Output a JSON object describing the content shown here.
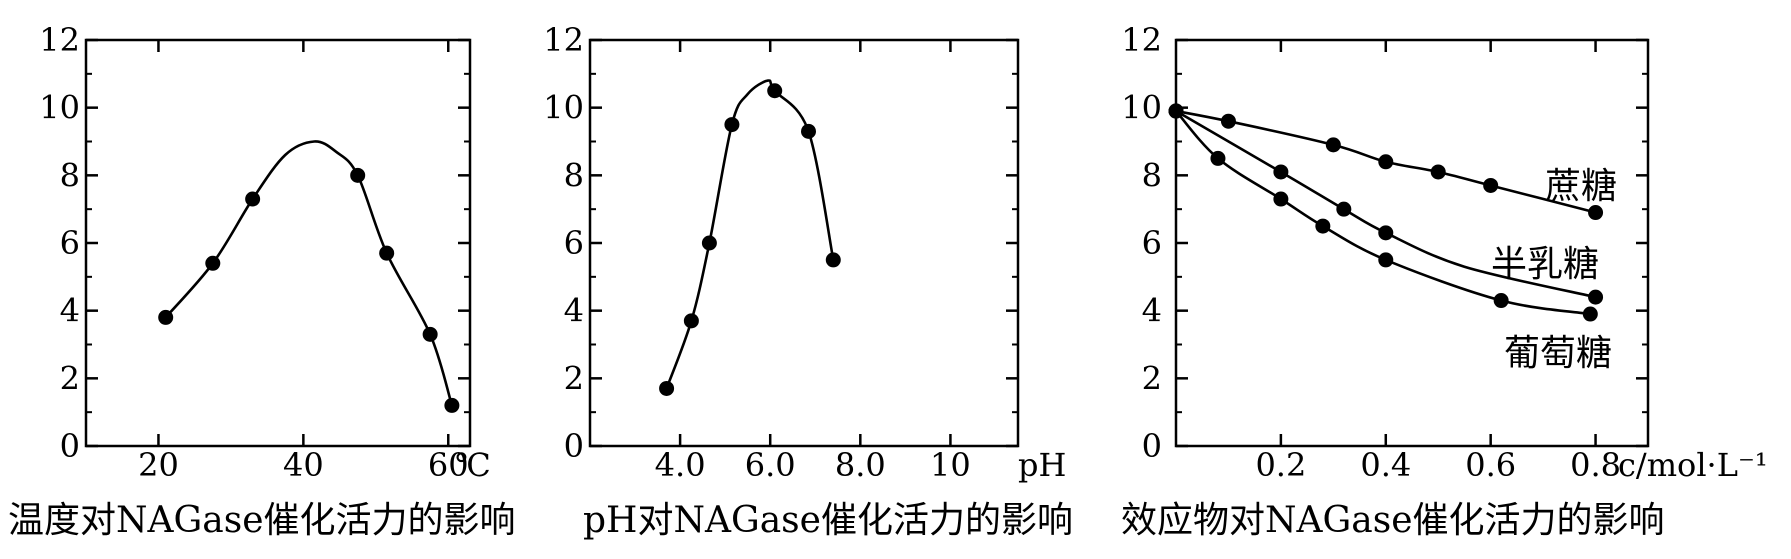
{
  "chart_data": [
    {
      "type": "line",
      "title": "温度对NAGase催化活力的影响",
      "xlabel": "℃",
      "ylabel": "",
      "xlim": [
        10,
        63
      ],
      "ylim": [
        0,
        12
      ],
      "x_ticks": [
        20,
        40,
        60
      ],
      "x_tick_labels": [
        "20",
        "40",
        "60"
      ],
      "y_ticks": [
        0,
        2,
        4,
        6,
        8,
        10,
        12
      ],
      "y_tick_labels": [
        "0",
        "2",
        "4",
        "6",
        "8",
        "10",
        "12"
      ],
      "grid": false,
      "series": [
        {
          "points": [
            [
              21,
              3.8
            ],
            [
              27.5,
              5.4
            ],
            [
              33,
              7.3
            ],
            [
              47.5,
              8.0
            ],
            [
              51.5,
              5.7
            ],
            [
              57.5,
              3.3
            ],
            [
              60.5,
              1.2
            ]
          ],
          "curve": [
            [
              21,
              3.8
            ],
            [
              27.5,
              5.4
            ],
            [
              33,
              7.3
            ],
            [
              37.5,
              8.6
            ],
            [
              41.5,
              9.0
            ],
            [
              44.5,
              8.7
            ],
            [
              47.5,
              8.0
            ],
            [
              51.5,
              5.7
            ],
            [
              57.5,
              3.3
            ],
            [
              60.5,
              1.2
            ]
          ]
        }
      ]
    },
    {
      "type": "line",
      "title": "pH对NAGase催化活力的影响",
      "xlabel": "pH",
      "ylabel": "",
      "xlim": [
        2,
        11.5
      ],
      "ylim": [
        0,
        12
      ],
      "x_ticks": [
        4.0,
        6.0,
        8.0,
        10
      ],
      "x_tick_labels": [
        "4.0",
        "6.0",
        "8.0",
        "10"
      ],
      "y_ticks": [
        0,
        2,
        4,
        6,
        8,
        10,
        12
      ],
      "y_tick_labels": [
        "0",
        "2",
        "4",
        "6",
        "8",
        "10",
        "12"
      ],
      "grid": false,
      "series": [
        {
          "points": [
            [
              3.7,
              1.7
            ],
            [
              4.25,
              3.7
            ],
            [
              4.65,
              6.0
            ],
            [
              5.15,
              9.5
            ],
            [
              6.1,
              10.5
            ],
            [
              6.85,
              9.3
            ],
            [
              7.4,
              5.5
            ]
          ],
          "curve": [
            [
              3.7,
              1.7
            ],
            [
              4.25,
              3.7
            ],
            [
              4.65,
              6.0
            ],
            [
              5.15,
              9.5
            ],
            [
              5.5,
              10.4
            ],
            [
              5.95,
              10.8
            ],
            [
              6.1,
              10.5
            ],
            [
              6.85,
              9.3
            ],
            [
              7.4,
              5.5
            ]
          ]
        }
      ]
    },
    {
      "type": "line",
      "title": "效应物对NAGase催化活力的影响",
      "xlabel": "c/mol·L⁻¹",
      "ylabel": "",
      "xlim": [
        0,
        0.9
      ],
      "ylim": [
        0,
        12
      ],
      "x_ticks": [
        0.2,
        0.4,
        0.6,
        0.8
      ],
      "x_tick_labels": [
        "0.2",
        "0.4",
        "0.6",
        "0.8"
      ],
      "y_ticks": [
        0,
        2,
        4,
        6,
        8,
        10,
        12
      ],
      "y_tick_labels": [
        "0",
        "2",
        "4",
        "6",
        "8",
        "10",
        "12"
      ],
      "grid": false,
      "series": [
        {
          "name": "蔗糖",
          "points": [
            [
              0,
              9.9
            ],
            [
              0.1,
              9.6
            ],
            [
              0.3,
              8.9
            ],
            [
              0.4,
              8.4
            ],
            [
              0.5,
              8.1
            ],
            [
              0.6,
              7.7
            ],
            [
              0.8,
              6.9
            ]
          ],
          "curve": [
            [
              0,
              9.9
            ],
            [
              0.1,
              9.6
            ],
            [
              0.3,
              8.9
            ],
            [
              0.4,
              8.4
            ],
            [
              0.5,
              8.1
            ],
            [
              0.6,
              7.7
            ],
            [
              0.8,
              6.9
            ]
          ]
        },
        {
          "name": "半乳糖",
          "points": [
            [
              0,
              9.9
            ],
            [
              0.2,
              8.1
            ],
            [
              0.32,
              7.0
            ],
            [
              0.4,
              6.3
            ],
            [
              0.8,
              4.4
            ]
          ],
          "curve": [
            [
              0,
              9.9
            ],
            [
              0.2,
              8.1
            ],
            [
              0.32,
              7.0
            ],
            [
              0.4,
              6.3
            ],
            [
              0.55,
              5.3
            ],
            [
              0.8,
              4.4
            ]
          ]
        },
        {
          "name": "葡萄糖",
          "points": [
            [
              0,
              9.9
            ],
            [
              0.08,
              8.5
            ],
            [
              0.2,
              7.3
            ],
            [
              0.28,
              6.5
            ],
            [
              0.4,
              5.5
            ],
            [
              0.62,
              4.3
            ],
            [
              0.79,
              3.9
            ]
          ],
          "curve": [
            [
              0,
              9.9
            ],
            [
              0.08,
              8.5
            ],
            [
              0.2,
              7.3
            ],
            [
              0.28,
              6.5
            ],
            [
              0.4,
              5.5
            ],
            [
              0.62,
              4.3
            ],
            [
              0.79,
              3.9
            ]
          ]
        }
      ]
    }
  ]
}
